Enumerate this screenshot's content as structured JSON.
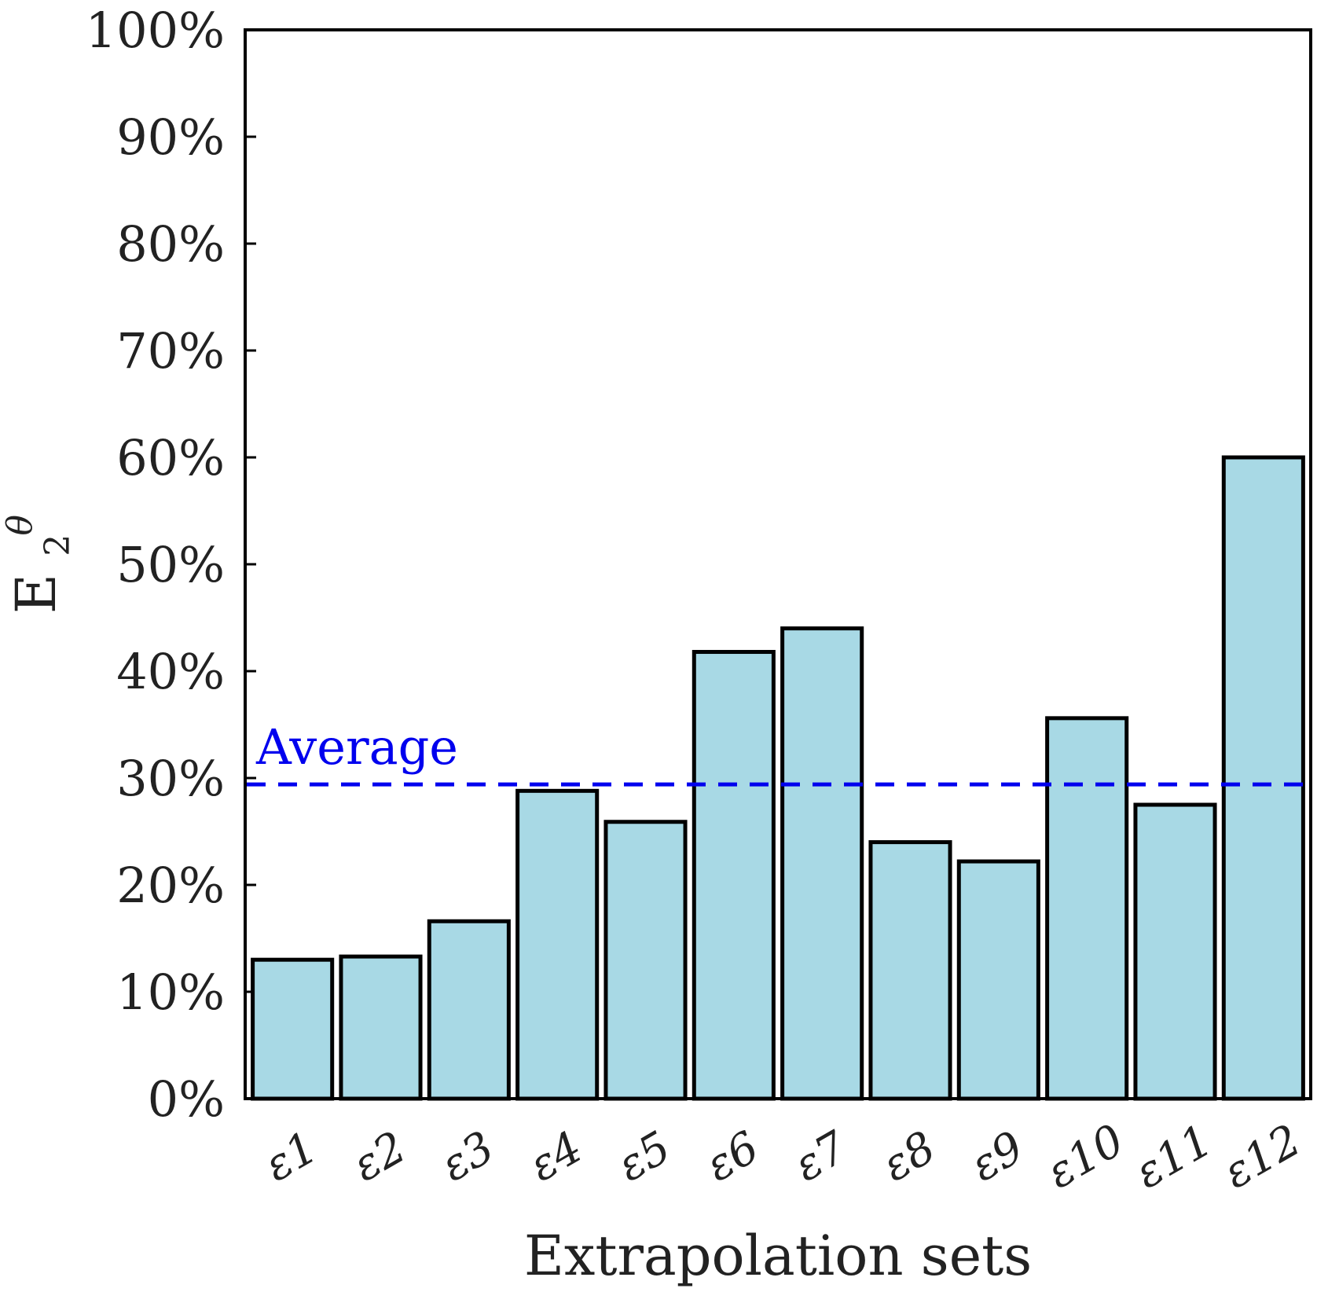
{
  "chart_data": {
    "type": "bar",
    "title": "",
    "xlabel": "Extrapolation sets",
    "ylabel": "E",
    "ylabel_sub": "2",
    "ylabel_sup": "θ",
    "categories": [
      "ε1",
      "ε2",
      "ε3",
      "ε4",
      "ε5",
      "ε6",
      "ε7",
      "ε8",
      "ε9",
      "ε10",
      "ε11",
      "ε12"
    ],
    "values": [
      13.0,
      13.3,
      16.6,
      28.8,
      25.9,
      41.8,
      44.0,
      24.0,
      22.2,
      35.6,
      27.5,
      60.0
    ],
    "ylim": [
      0,
      100
    ],
    "yticks": [
      0,
      10,
      20,
      30,
      40,
      50,
      60,
      70,
      80,
      90,
      100
    ],
    "ytick_labels": [
      "0%",
      "10%",
      "20%",
      "30%",
      "40%",
      "50%",
      "60%",
      "70%",
      "80%",
      "90%",
      "100%"
    ],
    "bar_color": "#a8d9e5",
    "bar_edge_color": "#000000",
    "average": {
      "label": "Average",
      "value": 29.4,
      "color": "#0000ee",
      "style": "dashed"
    },
    "grid": false
  }
}
